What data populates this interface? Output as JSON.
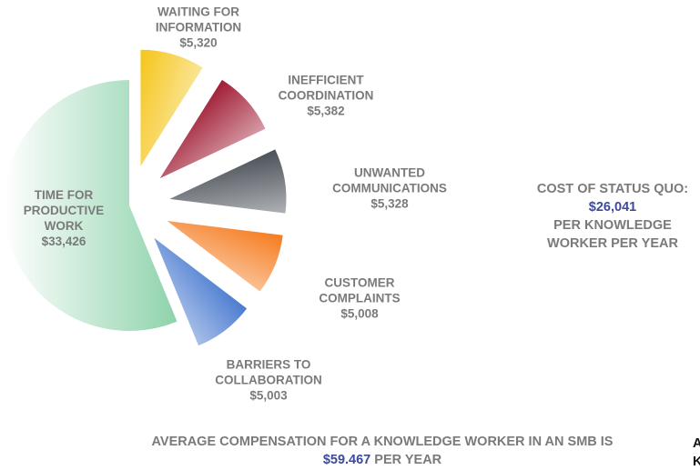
{
  "chart_data": {
    "type": "pie",
    "categories": [
      "TIME FOR PRODUCTIVE WORK",
      "WAITING FOR INFORMATION",
      "INEFFICIENT COORDINATION",
      "UNWANTED COMMUNICATIONS",
      "CUSTOMER COMPLAINTS",
      "BARRIERS TO COLLABORATION"
    ],
    "values": [
      33426,
      5320,
      5382,
      5328,
      5008,
      5003
    ],
    "value_labels": [
      "$33,426",
      "$5,320",
      "$5,382",
      "$5,328",
      "$5,008",
      "$5,003"
    ],
    "colors": [
      "#5cbf86",
      "#f5c518",
      "#a01c34",
      "#4a5058",
      "#f57c20",
      "#4a7bd0"
    ]
  },
  "summary": {
    "title": "COST OF STATUS QUO:",
    "value": "$26,041",
    "text": "PER KNOWLEDGE WORKER PER YEAR"
  },
  "footer": {
    "text": "AVERAGE COMPENSATION FOR A KNOWLEDGE WORKER IN AN SMB IS",
    "value": "$59.467",
    "suffix": "PER YEAR"
  },
  "cropped": [
    "A",
    "K"
  ]
}
